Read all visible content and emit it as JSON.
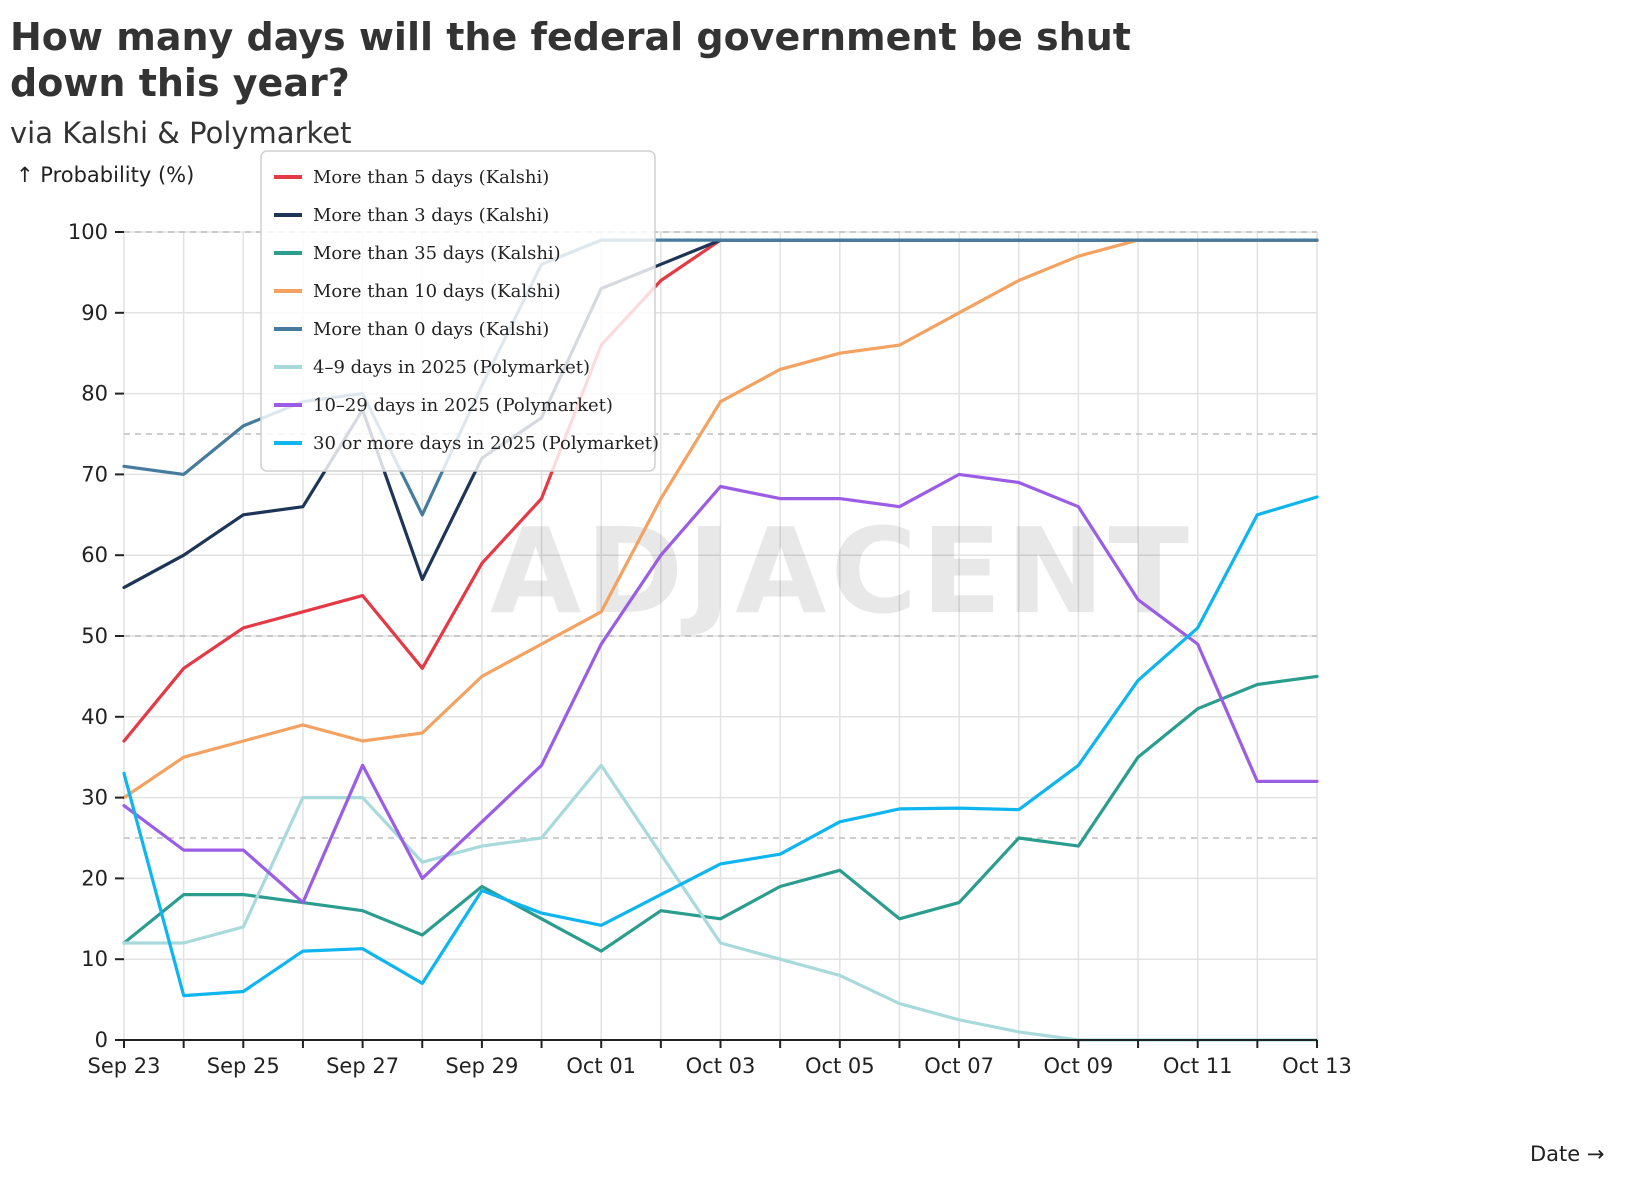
{
  "title": "How many days will the federal government be shut down this year?",
  "subtitle": "via Kalshi & Polymarket",
  "y_axis_label": "↑ Probability (%)",
  "x_axis_label": "Date →",
  "watermark": "ADJACENT",
  "chart_data": {
    "type": "line",
    "x": [
      "Sep 23",
      "Sep 24",
      "Sep 25",
      "Sep 26",
      "Sep 27",
      "Sep 28",
      "Sep 29",
      "Sep 30",
      "Oct 01",
      "Oct 02",
      "Oct 03",
      "Oct 04",
      "Oct 05",
      "Oct 06",
      "Oct 07",
      "Oct 08",
      "Oct 09",
      "Oct 10",
      "Oct 11",
      "Oct 12",
      "Oct 13"
    ],
    "x_tick_labels": [
      "Sep 23",
      "Sep 25",
      "Sep 27",
      "Sep 29",
      "Oct 01",
      "Oct 03",
      "Oct 05",
      "Oct 07",
      "Oct 09",
      "Oct 11",
      "Oct 13"
    ],
    "y_ticks": [
      0,
      10,
      20,
      30,
      40,
      50,
      60,
      70,
      80,
      90,
      100
    ],
    "ylim": [
      0,
      100
    ],
    "grid": true,
    "reference_lines": [
      25,
      50,
      75,
      100
    ],
    "legend_position": "top-left",
    "series": [
      {
        "name": "More than 5 days (Kalshi)",
        "color": "#e63946",
        "values": [
          37,
          46,
          51,
          53,
          55,
          46,
          59,
          67,
          86,
          94,
          99,
          99,
          99,
          99,
          99,
          99,
          99,
          99,
          99,
          99,
          99
        ]
      },
      {
        "name": "More than 3 days (Kalshi)",
        "color": "#1d3557",
        "values": [
          56,
          60,
          65,
          66,
          78,
          57,
          72,
          77,
          93,
          96,
          99,
          99,
          99,
          99,
          99,
          99,
          99,
          99,
          99,
          99,
          99
        ]
      },
      {
        "name": "More than 35 days (Kalshi)",
        "color": "#2a9d8f",
        "values": [
          12,
          18,
          18,
          17,
          16,
          13,
          19,
          15,
          11,
          16,
          15,
          19,
          21,
          15,
          17,
          25,
          24,
          35,
          41,
          44,
          45
        ]
      },
      {
        "name": "More than 10 days (Kalshi)",
        "color": "#f4a261",
        "values": [
          30,
          35,
          37,
          39,
          37,
          38,
          45,
          49,
          53,
          67,
          79,
          83,
          85,
          86,
          90,
          94,
          97,
          99,
          99,
          99,
          99
        ]
      },
      {
        "name": "More than 0 days (Kalshi)",
        "color": "#457b9d",
        "values": [
          71,
          70,
          76,
          79,
          80,
          65,
          81,
          96,
          99,
          99,
          99,
          99,
          99,
          99,
          99,
          99,
          99,
          99,
          99,
          99,
          99
        ]
      },
      {
        "name": "4–9 days in 2025 (Polymarket)",
        "color": "#a8dadc",
        "values": [
          12,
          12,
          14,
          30,
          30,
          22,
          24,
          25,
          34,
          23,
          12,
          10,
          8,
          4.5,
          2.5,
          1,
          0,
          0,
          0,
          0,
          0
        ]
      },
      {
        "name": "10–29 days in 2025 (Polymarket)",
        "color": "#9b5de5",
        "values": [
          29,
          23.5,
          23.5,
          17,
          34,
          20,
          27,
          34,
          49,
          60,
          68.5,
          67,
          67,
          66,
          70,
          69,
          66,
          54.5,
          49,
          32,
          32
        ]
      },
      {
        "name": "30 or more days in 2025 (Polymarket)",
        "color": "#0fb5ee",
        "values": [
          33,
          5.5,
          6,
          11,
          11.3,
          7,
          18.5,
          15.7,
          14.2,
          18,
          21.8,
          23,
          27,
          28.6,
          28.7,
          28.5,
          34,
          44.5,
          51,
          65,
          67.2
        ]
      }
    ]
  }
}
